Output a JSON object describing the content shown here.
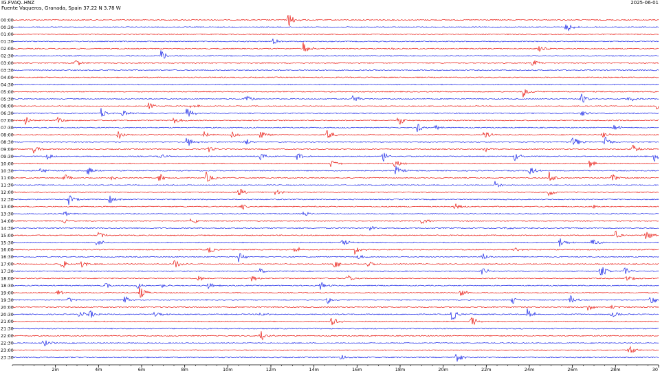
{
  "header": {
    "station": "IG.FVAQ..HNZ",
    "location": "Fuente Vaqueros, Granada, Spain  37.22 N 3.78 W",
    "date": "2025-06-01"
  },
  "colors": {
    "trace_red": "#e8140c",
    "trace_blue": "#1622e6",
    "axis": "#000000"
  },
  "chart_data": {
    "type": "line",
    "title": "IG.FVAQ..HNZ",
    "subtitle": "Fuente Vaqueros, Granada, Spain  37.22 N 3.78 W",
    "xlabel": "",
    "ylabel": "",
    "xlim_minutes": [
      0,
      30
    ],
    "x_ticks": [
      "2m",
      "4m",
      "6m",
      "8m",
      "10m",
      "12m",
      "14m",
      "16m",
      "18m",
      "20m",
      "22m",
      "24m",
      "26m",
      "28m",
      "30"
    ],
    "x_tick_values": [
      2,
      4,
      6,
      8,
      10,
      12,
      14,
      16,
      18,
      20,
      22,
      24,
      26,
      28,
      30
    ],
    "row_labels": [
      "00:00",
      "00:30",
      "01:00",
      "01:30",
      "02:00",
      "02:30",
      "03:00",
      "03:30",
      "04:00",
      "04:30",
      "05:00",
      "05:30",
      "06:00",
      "06:30",
      "07:00",
      "07:30",
      "08:00",
      "08:30",
      "09:00",
      "09:30",
      "10:00",
      "10:30",
      "11:00",
      "11:30",
      "12:00",
      "12:30",
      "13:00",
      "13:30",
      "14:00",
      "14:30",
      "15:00",
      "15:30",
      "16:00",
      "16:30",
      "17:00",
      "17:30",
      "18:00",
      "18:30",
      "19:00",
      "19:30",
      "20:00",
      "20:30",
      "21:00",
      "21:30",
      "22:00",
      "22:30",
      "23:00",
      "23:30"
    ],
    "series_colors_alternating": [
      "red",
      "blue"
    ],
    "events": [
      {
        "row": "00:00",
        "minute": 12.8,
        "amp": 1.0
      },
      {
        "row": "00:30",
        "minute": 25.7,
        "amp": 0.7
      },
      {
        "row": "01:30",
        "minute": 12.1,
        "amp": 0.4
      },
      {
        "row": "02:00",
        "minute": 13.5,
        "amp": 0.8
      },
      {
        "row": "02:00",
        "minute": 17.6,
        "amp": 0.2
      },
      {
        "row": "02:00",
        "minute": 24.4,
        "amp": 0.6
      },
      {
        "row": "02:30",
        "minute": 6.9,
        "amp": 0.8
      },
      {
        "row": "03:00",
        "minute": 2.9,
        "amp": 0.6
      },
      {
        "row": "03:00",
        "minute": 24.1,
        "amp": 0.6
      },
      {
        "row": "05:00",
        "minute": 23.7,
        "amp": 0.7
      },
      {
        "row": "05:30",
        "minute": 10.8,
        "amp": 0.6
      },
      {
        "row": "05:30",
        "minute": 15.8,
        "amp": 0.6
      },
      {
        "row": "05:30",
        "minute": 26.4,
        "amp": 0.7
      },
      {
        "row": "05:30",
        "minute": 28.6,
        "amp": 0.5
      },
      {
        "row": "06:00",
        "minute": 6.3,
        "amp": 0.5
      },
      {
        "row": "06:00",
        "minute": 8.3,
        "amp": 0.4
      },
      {
        "row": "06:00",
        "minute": 29.9,
        "amp": 0.7
      },
      {
        "row": "06:30",
        "minute": 4.1,
        "amp": 0.7
      },
      {
        "row": "06:30",
        "minute": 5.1,
        "amp": 0.5
      },
      {
        "row": "06:30",
        "minute": 8.1,
        "amp": 0.8
      },
      {
        "row": "06:30",
        "minute": 26.4,
        "amp": 0.5
      },
      {
        "row": "07:00",
        "minute": 0.6,
        "amp": 0.6
      },
      {
        "row": "07:00",
        "minute": 2.1,
        "amp": 0.4
      },
      {
        "row": "07:00",
        "minute": 7.5,
        "amp": 0.5
      },
      {
        "row": "07:00",
        "minute": 17.9,
        "amp": 0.7
      },
      {
        "row": "07:30",
        "minute": 18.8,
        "amp": 0.6
      },
      {
        "row": "07:30",
        "minute": 19.6,
        "amp": 0.4
      },
      {
        "row": "07:30",
        "minute": 27.9,
        "amp": 0.5
      },
      {
        "row": "08:00",
        "minute": 4.9,
        "amp": 0.6
      },
      {
        "row": "08:00",
        "minute": 8.9,
        "amp": 0.5
      },
      {
        "row": "08:00",
        "minute": 10.2,
        "amp": 0.4
      },
      {
        "row": "08:00",
        "minute": 11.5,
        "amp": 0.6
      },
      {
        "row": "08:00",
        "minute": 14.6,
        "amp": 0.7
      },
      {
        "row": "08:00",
        "minute": 21.9,
        "amp": 0.6
      },
      {
        "row": "08:00",
        "minute": 27.4,
        "amp": 0.4
      },
      {
        "row": "08:30",
        "minute": 8.1,
        "amp": 0.8
      },
      {
        "row": "08:30",
        "minute": 10.8,
        "amp": 0.5
      },
      {
        "row": "08:30",
        "minute": 26.0,
        "amp": 0.9
      },
      {
        "row": "08:30",
        "minute": 27.5,
        "amp": 0.7
      },
      {
        "row": "09:00",
        "minute": 1.0,
        "amp": 0.6
      },
      {
        "row": "09:00",
        "minute": 9.1,
        "amp": 0.4
      },
      {
        "row": "09:00",
        "minute": 21.9,
        "amp": 0.4
      },
      {
        "row": "09:00",
        "minute": 28.8,
        "amp": 0.6
      },
      {
        "row": "09:30",
        "minute": 1.6,
        "amp": 0.4
      },
      {
        "row": "09:30",
        "minute": 6.8,
        "amp": 0.4
      },
      {
        "row": "09:30",
        "minute": 11.5,
        "amp": 0.7
      },
      {
        "row": "09:30",
        "minute": 13.2,
        "amp": 0.5
      },
      {
        "row": "09:30",
        "minute": 17.2,
        "amp": 0.8
      },
      {
        "row": "09:30",
        "minute": 23.3,
        "amp": 0.6
      },
      {
        "row": "09:30",
        "minute": 29.8,
        "amp": 0.7
      },
      {
        "row": "10:00",
        "minute": 14.8,
        "amp": 0.6
      },
      {
        "row": "10:00",
        "minute": 17.7,
        "amp": 0.7
      },
      {
        "row": "10:00",
        "minute": 26.8,
        "amp": 0.5
      },
      {
        "row": "10:30",
        "minute": 1.3,
        "amp": 0.5
      },
      {
        "row": "10:30",
        "minute": 3.5,
        "amp": 0.7
      },
      {
        "row": "10:30",
        "minute": 17.8,
        "amp": 0.6
      },
      {
        "row": "10:30",
        "minute": 24.0,
        "amp": 0.7
      },
      {
        "row": "11:00",
        "minute": 2.4,
        "amp": 0.5
      },
      {
        "row": "11:00",
        "minute": 4.6,
        "amp": 0.4
      },
      {
        "row": "11:00",
        "minute": 6.8,
        "amp": 0.6
      },
      {
        "row": "11:00",
        "minute": 9.0,
        "amp": 0.7
      },
      {
        "row": "11:00",
        "minute": 24.9,
        "amp": 0.9
      },
      {
        "row": "11:00",
        "minute": 27.8,
        "amp": 0.6
      },
      {
        "row": "11:30",
        "minute": 22.4,
        "amp": 0.5
      },
      {
        "row": "12:00",
        "minute": 10.5,
        "amp": 0.6
      },
      {
        "row": "12:00",
        "minute": 12.2,
        "amp": 0.4
      },
      {
        "row": "12:00",
        "minute": 24.9,
        "amp": 0.5
      },
      {
        "row": "12:30",
        "minute": 2.6,
        "amp": 0.7
      },
      {
        "row": "12:30",
        "minute": 4.5,
        "amp": 0.5
      },
      {
        "row": "13:00",
        "minute": 10.6,
        "amp": 0.5
      },
      {
        "row": "13:00",
        "minute": 20.5,
        "amp": 0.5
      },
      {
        "row": "13:00",
        "minute": 26.9,
        "amp": 0.5
      },
      {
        "row": "13:30",
        "minute": 2.4,
        "amp": 0.5
      },
      {
        "row": "13:30",
        "minute": 13.5,
        "amp": 0.4
      },
      {
        "row": "14:00",
        "minute": 2.4,
        "amp": 0.4
      },
      {
        "row": "14:00",
        "minute": 8.3,
        "amp": 0.6
      },
      {
        "row": "14:00",
        "minute": 19.0,
        "amp": 0.5
      },
      {
        "row": "14:30",
        "minute": 16.6,
        "amp": 0.4
      },
      {
        "row": "14:30",
        "minute": 22.8,
        "amp": 0.3
      },
      {
        "row": "15:00",
        "minute": 4.0,
        "amp": 0.5
      },
      {
        "row": "15:00",
        "minute": 28.0,
        "amp": 0.6
      },
      {
        "row": "15:00",
        "minute": 29.4,
        "amp": 0.7
      },
      {
        "row": "15:30",
        "minute": 3.9,
        "amp": 0.6
      },
      {
        "row": "15:30",
        "minute": 15.3,
        "amp": 0.5
      },
      {
        "row": "15:30",
        "minute": 25.4,
        "amp": 0.7
      },
      {
        "row": "15:30",
        "minute": 26.9,
        "amp": 0.6
      },
      {
        "row": "16:00",
        "minute": 9.1,
        "amp": 0.5
      },
      {
        "row": "16:00",
        "minute": 13.1,
        "amp": 0.5
      },
      {
        "row": "16:00",
        "minute": 15.9,
        "amp": 0.6
      },
      {
        "row": "16:00",
        "minute": 23.3,
        "amp": 0.4
      },
      {
        "row": "16:30",
        "minute": 10.5,
        "amp": 0.7
      },
      {
        "row": "16:30",
        "minute": 16.0,
        "amp": 0.4
      },
      {
        "row": "16:30",
        "minute": 21.8,
        "amp": 0.5
      },
      {
        "row": "17:00",
        "minute": 2.3,
        "amp": 0.7
      },
      {
        "row": "17:00",
        "minute": 3.2,
        "amp": 0.5
      },
      {
        "row": "17:00",
        "minute": 7.5,
        "amp": 0.8
      },
      {
        "row": "17:00",
        "minute": 14.9,
        "amp": 0.6
      },
      {
        "row": "17:00",
        "minute": 16.5,
        "amp": 0.4
      },
      {
        "row": "17:30",
        "minute": 11.5,
        "amp": 0.6
      },
      {
        "row": "17:30",
        "minute": 21.8,
        "amp": 0.5
      },
      {
        "row": "17:30",
        "minute": 27.3,
        "amp": 1.0
      },
      {
        "row": "17:30",
        "minute": 28.4,
        "amp": 0.6
      },
      {
        "row": "18:00",
        "minute": 8.6,
        "amp": 0.4
      },
      {
        "row": "18:00",
        "minute": 11.1,
        "amp": 0.4
      },
      {
        "row": "18:00",
        "minute": 15.5,
        "amp": 0.6
      },
      {
        "row": "18:00",
        "minute": 28.5,
        "amp": 0.5
      },
      {
        "row": "18:30",
        "minute": 4.3,
        "amp": 0.4
      },
      {
        "row": "18:30",
        "minute": 5.8,
        "amp": 0.4
      },
      {
        "row": "18:30",
        "minute": 6.9,
        "amp": 0.4
      },
      {
        "row": "18:30",
        "minute": 9.1,
        "amp": 0.5
      },
      {
        "row": "18:30",
        "minute": 14.3,
        "amp": 0.5
      },
      {
        "row": "19:00",
        "minute": 2.1,
        "amp": 0.4
      },
      {
        "row": "19:00",
        "minute": 5.9,
        "amp": 1.0
      },
      {
        "row": "19:00",
        "minute": 20.8,
        "amp": 0.6
      },
      {
        "row": "19:30",
        "minute": 2.6,
        "amp": 0.4
      },
      {
        "row": "19:30",
        "minute": 5.2,
        "amp": 0.5
      },
      {
        "row": "19:30",
        "minute": 14.6,
        "amp": 0.5
      },
      {
        "row": "19:30",
        "minute": 23.2,
        "amp": 0.5
      },
      {
        "row": "19:30",
        "minute": 25.9,
        "amp": 0.6
      },
      {
        "row": "19:30",
        "minute": 29.6,
        "amp": 0.9
      },
      {
        "row": "20:00",
        "minute": 26.7,
        "amp": 0.5
      },
      {
        "row": "20:00",
        "minute": 27.8,
        "amp": 0.3
      },
      {
        "row": "20:30",
        "minute": 3.1,
        "amp": 0.5
      },
      {
        "row": "20:30",
        "minute": 3.6,
        "amp": 0.7
      },
      {
        "row": "20:30",
        "minute": 6.6,
        "amp": 0.5
      },
      {
        "row": "20:30",
        "minute": 11.5,
        "amp": 0.4
      },
      {
        "row": "20:30",
        "minute": 20.4,
        "amp": 0.9
      },
      {
        "row": "20:30",
        "minute": 23.9,
        "amp": 0.8
      },
      {
        "row": "20:30",
        "minute": 27.8,
        "amp": 0.6
      },
      {
        "row": "21:00",
        "minute": 14.8,
        "amp": 0.7
      },
      {
        "row": "21:00",
        "minute": 21.3,
        "amp": 0.7
      },
      {
        "row": "22:00",
        "minute": 11.5,
        "amp": 0.8
      },
      {
        "row": "22:30",
        "minute": 1.4,
        "amp": 0.7
      },
      {
        "row": "23:00",
        "minute": 28.6,
        "amp": 0.7
      },
      {
        "row": "23:30",
        "minute": 15.2,
        "amp": 0.4
      },
      {
        "row": "23:30",
        "minute": 20.6,
        "amp": 0.7
      }
    ]
  }
}
